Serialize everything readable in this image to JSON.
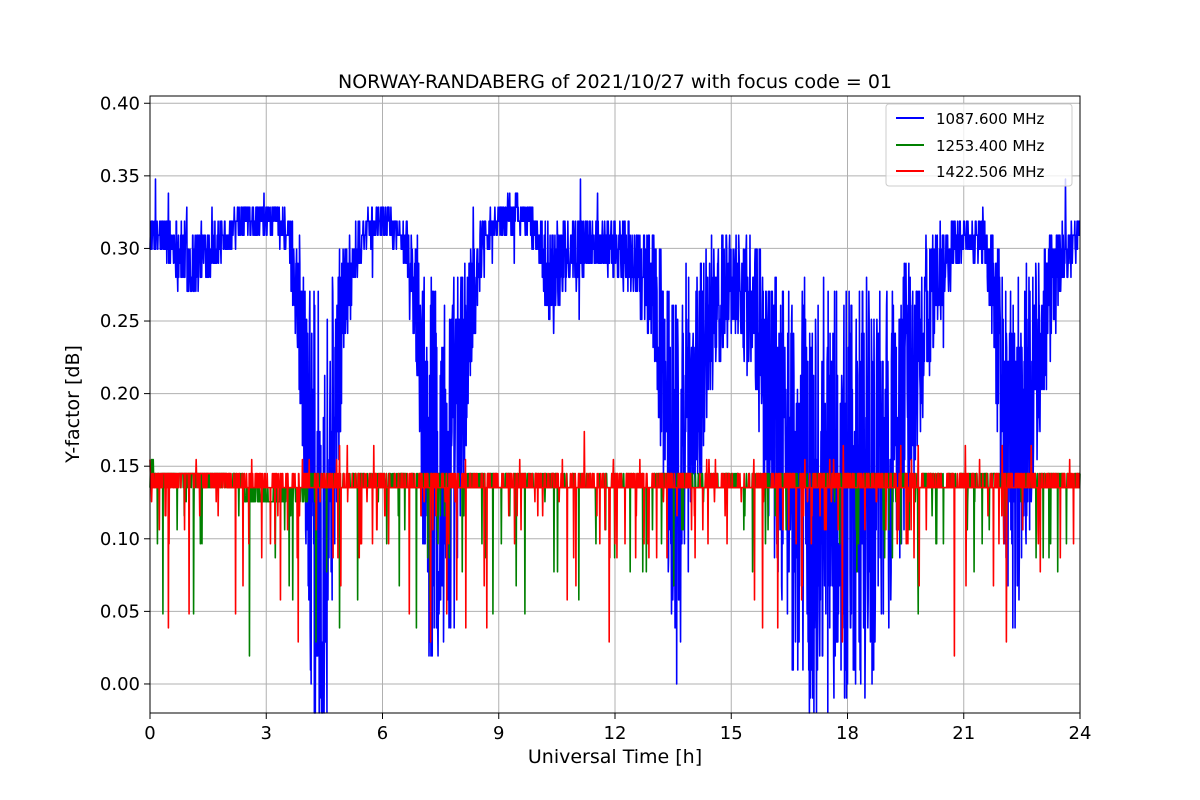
{
  "chart_data": {
    "type": "line",
    "title": "NORWAY-RANDABERG of 2021/10/27 with focus code = 01",
    "xlabel": "Universal Time [h]",
    "ylabel": "Y-factor [dB]",
    "xlim": [
      0,
      24
    ],
    "ylim": [
      -0.02,
      0.405
    ],
    "xticks": [
      0,
      3,
      6,
      9,
      12,
      15,
      18,
      21,
      24
    ],
    "xtick_labels": [
      "0",
      "3",
      "6",
      "9",
      "12",
      "15",
      "18",
      "21",
      "24"
    ],
    "yticks": [
      0.0,
      0.05,
      0.1,
      0.15,
      0.2,
      0.25,
      0.3,
      0.35,
      0.4
    ],
    "ytick_labels": [
      "0.00",
      "0.05",
      "0.10",
      "0.15",
      "0.20",
      "0.25",
      "0.30",
      "0.35",
      "0.40"
    ],
    "grid": true,
    "legend_position": "top-right",
    "series": [
      {
        "name": "1087.600 MHz",
        "color": "#0000ff",
        "x": [
          0,
          0.5,
          1.0,
          1.5,
          2.0,
          2.5,
          3.0,
          3.5,
          3.8,
          4.0,
          4.2,
          4.4,
          4.6,
          4.8,
          5.0,
          5.5,
          6.0,
          6.5,
          6.8,
          7.0,
          7.2,
          7.5,
          7.8,
          8.0,
          8.3,
          8.6,
          9.0,
          9.5,
          10.0,
          10.3,
          10.6,
          11.0,
          11.5,
          12.0,
          12.5,
          13.0,
          13.3,
          13.6,
          14.0,
          14.5,
          15.0,
          15.5,
          16.0,
          16.5,
          17.0,
          17.5,
          18.0,
          18.5,
          19.0,
          19.5,
          20.0,
          20.5,
          21.0,
          21.5,
          21.8,
          22.0,
          22.3,
          22.6,
          23.0,
          23.5,
          24.0
        ],
        "y": [
          0.31,
          0.305,
          0.29,
          0.3,
          0.31,
          0.32,
          0.32,
          0.315,
          0.27,
          0.2,
          0.12,
          0.09,
          0.13,
          0.2,
          0.27,
          0.31,
          0.32,
          0.31,
          0.27,
          0.2,
          0.15,
          0.14,
          0.15,
          0.19,
          0.26,
          0.31,
          0.32,
          0.325,
          0.31,
          0.28,
          0.29,
          0.3,
          0.305,
          0.3,
          0.29,
          0.27,
          0.2,
          0.14,
          0.2,
          0.25,
          0.28,
          0.26,
          0.2,
          0.15,
          0.12,
          0.13,
          0.12,
          0.13,
          0.15,
          0.2,
          0.25,
          0.29,
          0.31,
          0.305,
          0.26,
          0.2,
          0.15,
          0.19,
          0.24,
          0.29,
          0.31
        ]
      },
      {
        "name": "1253.400 MHz",
        "color": "#008000",
        "x": [
          0,
          2,
          3,
          4,
          5,
          6,
          8,
          10,
          12,
          14,
          16,
          18,
          20,
          22,
          24
        ],
        "y": [
          0.145,
          0.14,
          0.128,
          0.135,
          0.14,
          0.14,
          0.138,
          0.14,
          0.14,
          0.138,
          0.14,
          0.14,
          0.14,
          0.14,
          0.14
        ]
      },
      {
        "name": "1422.506 MHz",
        "color": "#ff0000",
        "x": [
          0,
          2,
          4,
          6,
          8,
          10,
          12,
          14,
          16,
          18,
          20,
          22,
          24
        ],
        "y": [
          0.145,
          0.14,
          0.138,
          0.14,
          0.138,
          0.14,
          0.14,
          0.138,
          0.14,
          0.14,
          0.14,
          0.14,
          0.14
        ]
      }
    ]
  }
}
